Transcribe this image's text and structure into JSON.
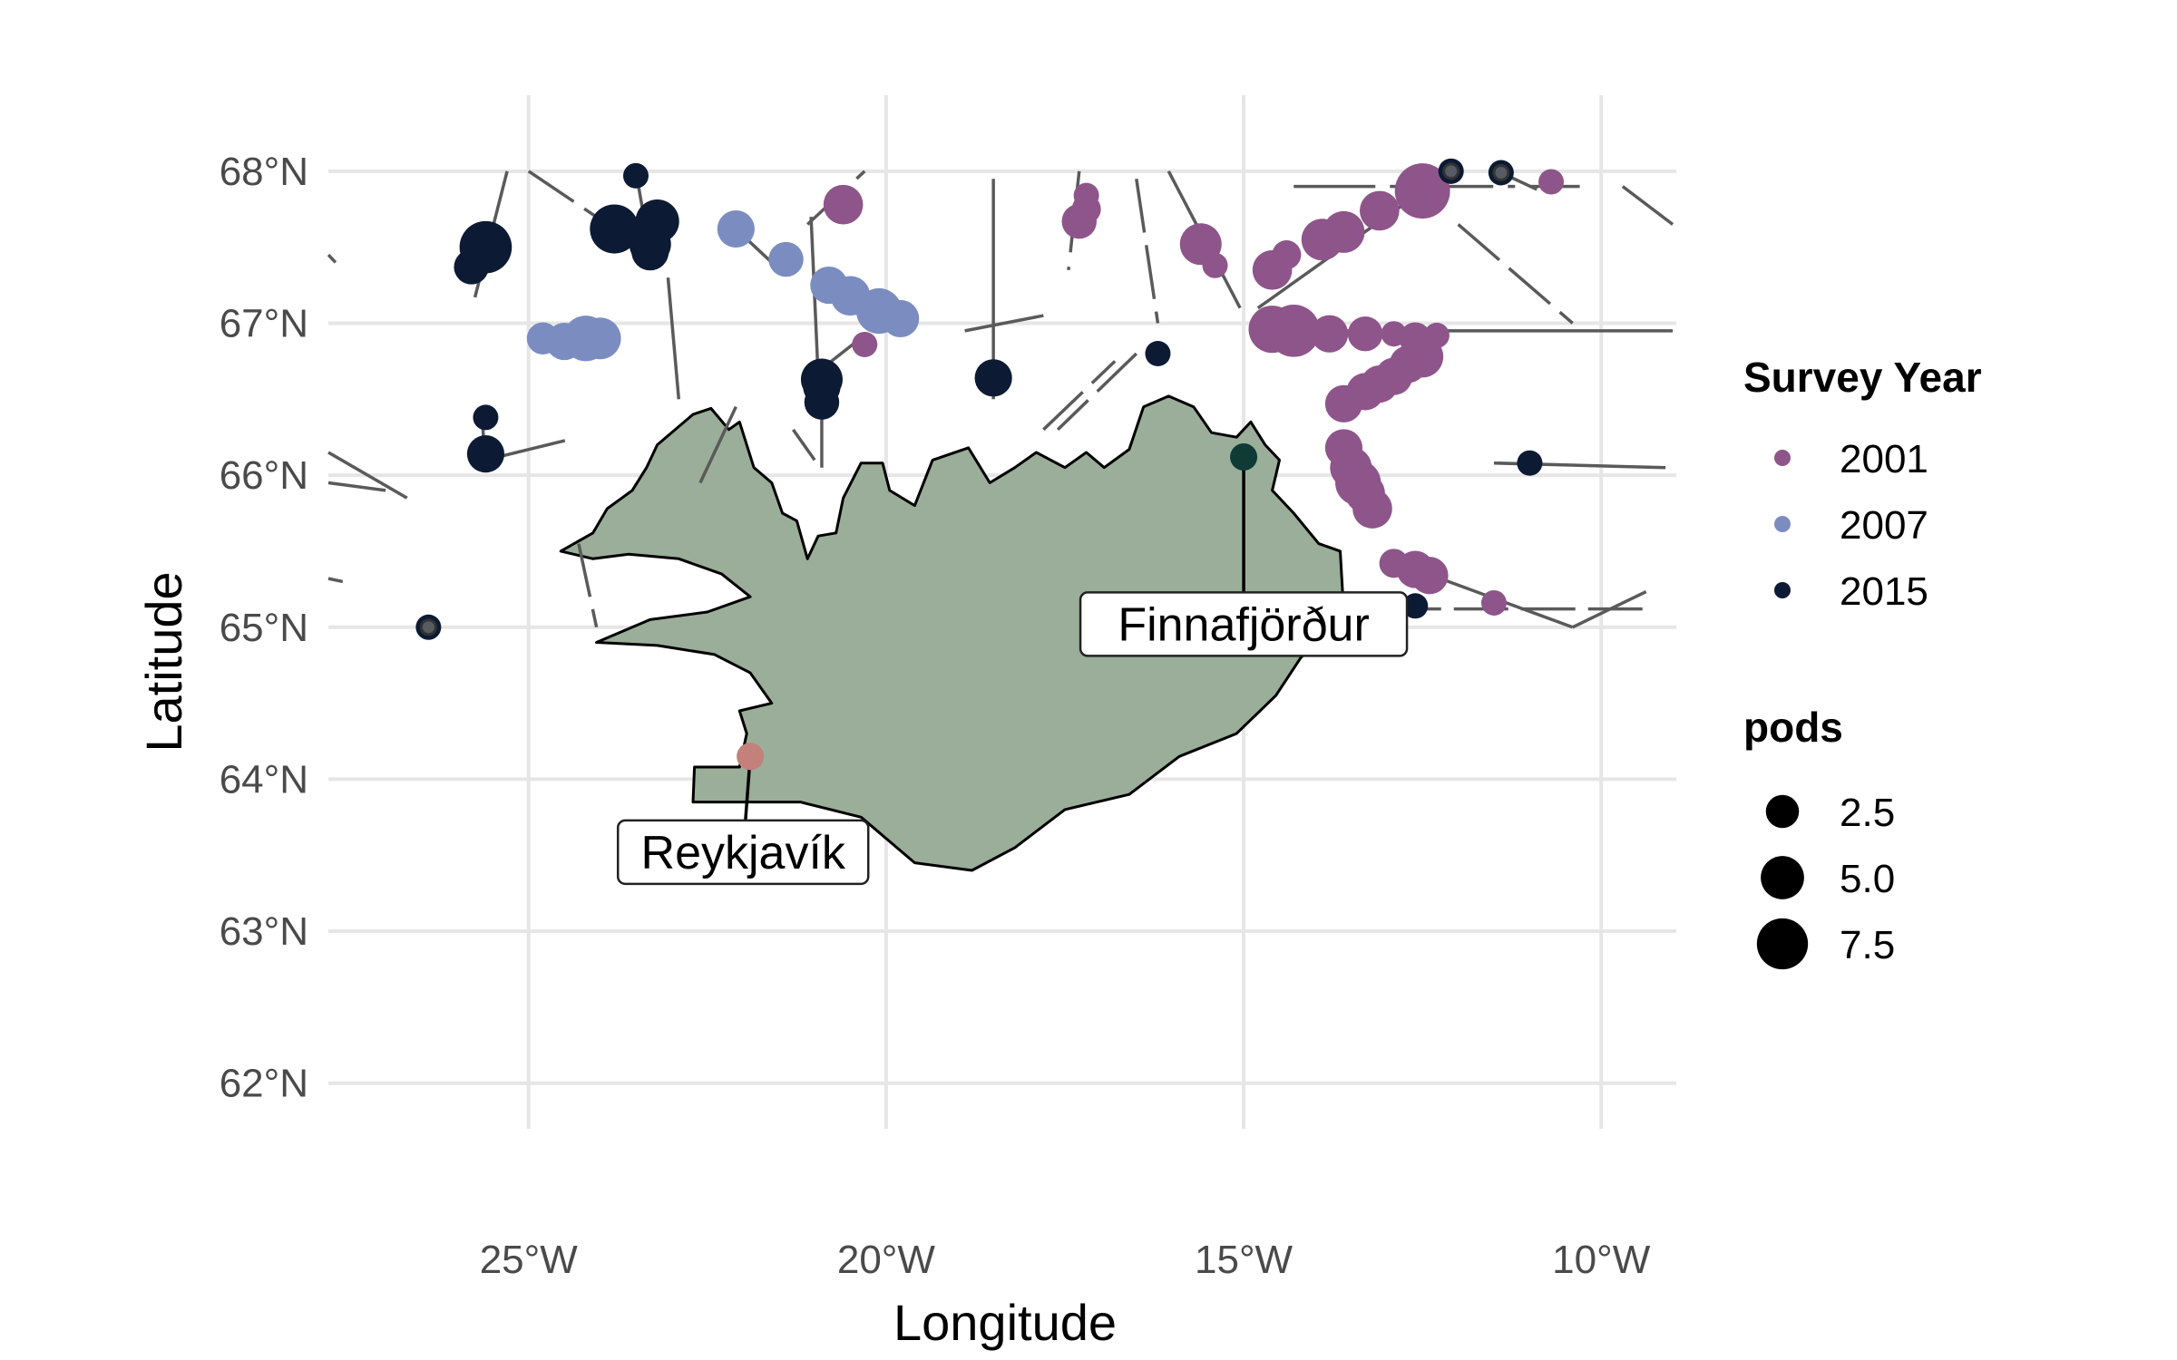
{
  "axes": {
    "x_title": "Longitude",
    "y_title": "Latitude",
    "x_ticks": [
      {
        "value": -25,
        "label": "25°W"
      },
      {
        "value": -20,
        "label": "20°W"
      },
      {
        "value": -15,
        "label": "15°W"
      },
      {
        "value": -10,
        "label": "10°W"
      }
    ],
    "y_ticks": [
      {
        "value": 62,
        "label": "62°N"
      },
      {
        "value": 63,
        "label": "63°N"
      },
      {
        "value": 64,
        "label": "64°N"
      },
      {
        "value": 65,
        "label": "65°N"
      },
      {
        "value": 66,
        "label": "66°N"
      },
      {
        "value": 67,
        "label": "67°N"
      },
      {
        "value": 68,
        "label": "68°N"
      }
    ],
    "x_range": [
      -27.8,
      -8.95
    ],
    "y_range": [
      61.7,
      68.5
    ]
  },
  "legend_year": {
    "title": "Survey Year",
    "items": [
      {
        "label": "2001",
        "color": "#8e558b"
      },
      {
        "label": "2007",
        "color": "#7b8dc0"
      },
      {
        "label": "2015",
        "color": "#0c1a33"
      }
    ]
  },
  "legend_size": {
    "title": "pods",
    "items": [
      {
        "label": "2.5",
        "value": 2.5
      },
      {
        "label": "5.0",
        "value": 5.0
      },
      {
        "label": "7.5",
        "value": 7.5
      }
    ]
  },
  "places": [
    {
      "name": "Reykjavík",
      "lon": -21.9,
      "lat": 64.15,
      "label_lon": -22.0,
      "label_lat": 63.52,
      "color": "#c4807a"
    },
    {
      "name": "Finnafjörður",
      "lon": -15.0,
      "lat": 66.12,
      "label_lon": -15.0,
      "label_lat": 65.02,
      "color": "#0f3a35"
    }
  ],
  "colors": {
    "land": "#9aae99",
    "coast": "#000000",
    "track": "#5a5a5a",
    "grid": "#e6e6e6"
  },
  "chart_data": {
    "type": "scatter",
    "x_label": "Longitude",
    "y_label": "Latitude",
    "series": [
      {
        "name": "2001",
        "color": "#8e558b",
        "points": [
          [
            -20.6,
            67.78,
            3.5
          ],
          [
            -17.3,
            67.67,
            2.5
          ],
          [
            -17.2,
            67.75,
            1.5
          ],
          [
            -17.2,
            67.84,
            1
          ],
          [
            -20.3,
            66.86,
            1
          ],
          [
            -15.6,
            67.52,
            4
          ],
          [
            -15.4,
            67.38,
            1
          ],
          [
            -14.6,
            67.35,
            3.5
          ],
          [
            -14.4,
            67.45,
            1.5
          ],
          [
            -13.9,
            67.55,
            4
          ],
          [
            -13.6,
            67.6,
            4
          ],
          [
            -13.1,
            67.74,
            3.5
          ],
          [
            -12.5,
            67.87,
            8
          ],
          [
            -12.1,
            68.0,
            1
          ],
          [
            -10.7,
            67.93,
            1
          ],
          [
            -14.6,
            66.96,
            5.5
          ],
          [
            -14.3,
            66.95,
            7
          ],
          [
            -13.8,
            66.93,
            3
          ],
          [
            -13.3,
            66.93,
            2.5
          ],
          [
            -12.9,
            66.93,
            1
          ],
          [
            -12.6,
            66.9,
            2
          ],
          [
            -12.3,
            66.92,
            1
          ],
          [
            -12.5,
            66.78,
            4
          ],
          [
            -12.7,
            66.73,
            3
          ],
          [
            -12.9,
            66.65,
            3
          ],
          [
            -13.1,
            66.6,
            3
          ],
          [
            -13.3,
            66.55,
            3
          ],
          [
            -13.6,
            66.47,
            3
          ],
          [
            -13.6,
            66.18,
            3
          ],
          [
            -13.5,
            66.05,
            4
          ],
          [
            -13.4,
            65.95,
            5
          ],
          [
            -13.3,
            65.88,
            3.5
          ],
          [
            -13.2,
            65.78,
            3.5
          ],
          [
            -12.9,
            65.42,
            1.5
          ],
          [
            -12.6,
            65.38,
            3
          ],
          [
            -12.4,
            65.34,
            3
          ],
          [
            -11.5,
            65.16,
            1
          ]
        ]
      },
      {
        "name": "2007",
        "color": "#7b8dc0",
        "points": [
          [
            -22.1,
            67.62,
            3
          ],
          [
            -21.4,
            67.42,
            2.5
          ],
          [
            -20.8,
            67.25,
            3
          ],
          [
            -20.5,
            67.18,
            3.5
          ],
          [
            -20.1,
            67.08,
            5
          ],
          [
            -19.8,
            67.03,
            3
          ],
          [
            -24.8,
            66.9,
            2
          ],
          [
            -24.5,
            66.88,
            3
          ],
          [
            -24.2,
            66.9,
            5
          ],
          [
            -24.0,
            66.9,
            4
          ]
        ]
      },
      {
        "name": "2015",
        "color": "#0c1a33",
        "points": [
          [
            -25.6,
            67.5,
            7
          ],
          [
            -25.8,
            67.37,
            2.5
          ],
          [
            -23.8,
            67.62,
            6
          ],
          [
            -23.2,
            67.67,
            4.5
          ],
          [
            -23.3,
            67.52,
            4
          ],
          [
            -23.3,
            67.47,
            3
          ],
          [
            -23.5,
            67.97,
            1
          ],
          [
            -20.9,
            66.63,
            4
          ],
          [
            -20.9,
            66.58,
            3
          ],
          [
            -20.9,
            66.48,
            2.5
          ],
          [
            -18.5,
            66.64,
            3
          ],
          [
            -16.2,
            66.8,
            1
          ],
          [
            -25.6,
            66.14,
            3
          ],
          [
            -25.6,
            66.38,
            1
          ],
          [
            -11.0,
            66.08,
            1
          ],
          [
            -12.6,
            65.14,
            1
          ],
          [
            -11.4,
            67.99,
            1
          ],
          [
            -12.1,
            68.0,
            1
          ],
          [
            -26.4,
            65.0,
            1
          ]
        ]
      }
    ]
  }
}
